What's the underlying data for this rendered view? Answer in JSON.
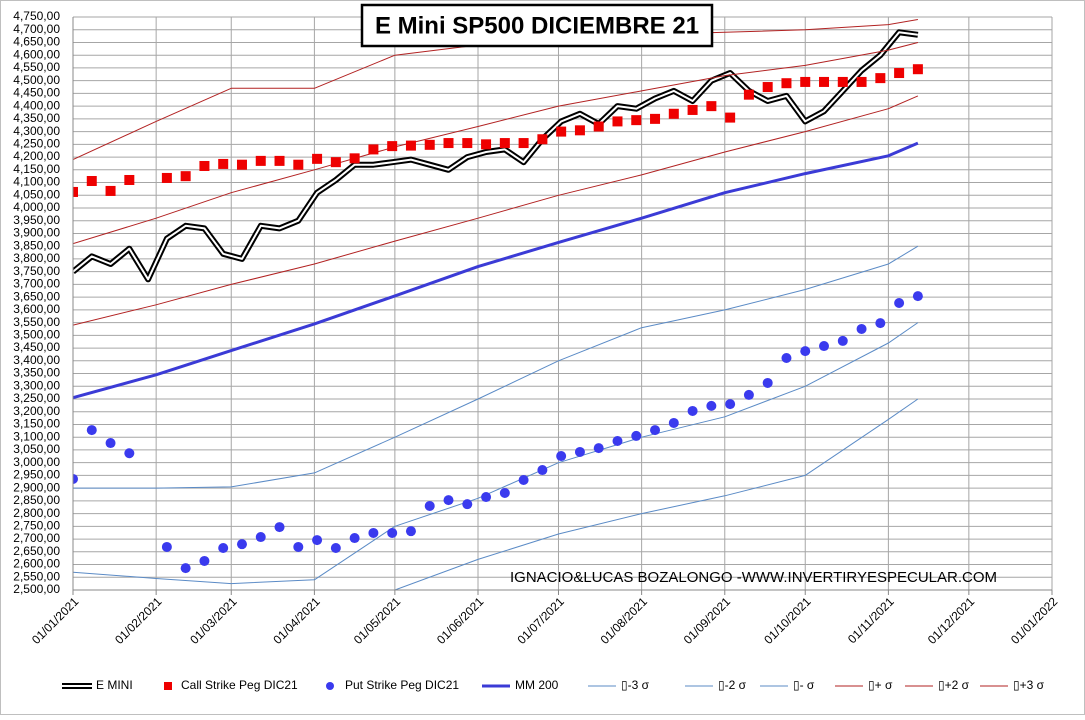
{
  "chart_data": {
    "type": "line",
    "title": "E Mini SP500 DICIEMBRE 21",
    "annotation": "IGNACIO&LUCAS BOZALONGO -WWW.INVERTIRYESPECULAR.COM",
    "grid": true,
    "legend": "bottom",
    "xlim": [
      "2021-01-01",
      "2022-01-01"
    ],
    "xticks": [
      {
        "value": "2021-01-01",
        "label": "01/01/2021"
      },
      {
        "value": "2021-02-01",
        "label": "01/02/2021"
      },
      {
        "value": "2021-03-01",
        "label": "01/03/2021"
      },
      {
        "value": "2021-04-01",
        "label": "01/04/2021"
      },
      {
        "value": "2021-05-01",
        "label": "01/05/2021"
      },
      {
        "value": "2021-06-01",
        "label": "01/06/2021"
      },
      {
        "value": "2021-07-01",
        "label": "01/07/2021"
      },
      {
        "value": "2021-08-01",
        "label": "01/08/2021"
      },
      {
        "value": "2021-09-01",
        "label": "01/09/2021"
      },
      {
        "value": "2021-10-01",
        "label": "01/10/2021"
      },
      {
        "value": "2021-11-01",
        "label": "01/11/2021"
      },
      {
        "value": "2021-12-01",
        "label": "01/12/2021"
      },
      {
        "value": "2022-01-01",
        "label": "01/01/2022"
      }
    ],
    "ylim": [
      2500,
      4750
    ],
    "yticks": [
      {
        "value": 2500,
        "label": "2,500,00"
      },
      {
        "value": 2550,
        "label": "2,550,00"
      },
      {
        "value": 2600,
        "label": "2,600,00"
      },
      {
        "value": 2650,
        "label": "2,650,00"
      },
      {
        "value": 2700,
        "label": "2,700,00"
      },
      {
        "value": 2750,
        "label": "2,750,00"
      },
      {
        "value": 2800,
        "label": "2,800,00"
      },
      {
        "value": 2850,
        "label": "2,850,00"
      },
      {
        "value": 2900,
        "label": "2,900,00"
      },
      {
        "value": 2950,
        "label": "2,950,00"
      },
      {
        "value": 3000,
        "label": "3,000,00"
      },
      {
        "value": 3050,
        "label": "3,050,00"
      },
      {
        "value": 3100,
        "label": "3,100,00"
      },
      {
        "value": 3150,
        "label": "3,150,00"
      },
      {
        "value": 3200,
        "label": "3,200,00"
      },
      {
        "value": 3250,
        "label": "3,250,00"
      },
      {
        "value": 3300,
        "label": "3,300,00"
      },
      {
        "value": 3350,
        "label": "3,350,00"
      },
      {
        "value": 3400,
        "label": "3,400,00"
      },
      {
        "value": 3450,
        "label": "3,450,00"
      },
      {
        "value": 3500,
        "label": "3,500,00"
      },
      {
        "value": 3550,
        "label": "3,550,00"
      },
      {
        "value": 3600,
        "label": "3,600,00"
      },
      {
        "value": 3650,
        "label": "3,650,00"
      },
      {
        "value": 3700,
        "label": "3,700,00"
      },
      {
        "value": 3750,
        "label": "3,750,00"
      },
      {
        "value": 3800,
        "label": "3,800,00"
      },
      {
        "value": 3850,
        "label": "3,850,00"
      },
      {
        "value": 3900,
        "label": "3,900,00"
      },
      {
        "value": 3950,
        "label": "3,950,00"
      },
      {
        "value": 4000,
        "label": "4,000,00"
      },
      {
        "value": 4050,
        "label": "4,050,00"
      },
      {
        "value": 4100,
        "label": "4,100,00"
      },
      {
        "value": 4150,
        "label": "4,150,00"
      },
      {
        "value": 4200,
        "label": "4,200,00"
      },
      {
        "value": 4250,
        "label": "4,250,00"
      },
      {
        "value": 4300,
        "label": "4,300,00"
      },
      {
        "value": 4350,
        "label": "4,350,00"
      },
      {
        "value": 4400,
        "label": "4,400,00"
      },
      {
        "value": 4450,
        "label": "4,450,00"
      },
      {
        "value": 4500,
        "label": "4,500,00"
      },
      {
        "value": 4550,
        "label": "4,550,00"
      },
      {
        "value": 4600,
        "label": "4,600,00"
      },
      {
        "value": 4650,
        "label": "4,650,00"
      },
      {
        "value": 4700,
        "label": "4,700,00"
      },
      {
        "value": 4750,
        "label": "4,750,00"
      }
    ],
    "x": [
      "2021-01-01",
      "2021-01-08",
      "2021-01-15",
      "2021-01-22",
      "2021-01-29",
      "2021-02-05",
      "2021-02-12",
      "2021-02-19",
      "2021-02-26",
      "2021-03-05",
      "2021-03-12",
      "2021-03-19",
      "2021-03-26",
      "2021-04-02",
      "2021-04-09",
      "2021-04-16",
      "2021-04-23",
      "2021-04-30",
      "2021-05-07",
      "2021-05-14",
      "2021-05-21",
      "2021-05-28",
      "2021-06-04",
      "2021-06-11",
      "2021-06-18",
      "2021-06-25",
      "2021-07-02",
      "2021-07-09",
      "2021-07-16",
      "2021-07-23",
      "2021-07-30",
      "2021-08-06",
      "2021-08-13",
      "2021-08-20",
      "2021-08-27",
      "2021-09-03",
      "2021-09-10",
      "2021-09-17",
      "2021-09-24",
      "2021-10-01",
      "2021-10-08",
      "2021-10-15",
      "2021-10-22",
      "2021-10-29",
      "2021-11-05",
      "2021-11-12"
    ],
    "series": [
      {
        "name": "E MINI",
        "style": "double",
        "color": "#000000",
        "values": [
          3750,
          3810,
          3780,
          3840,
          3720,
          3880,
          3930,
          3920,
          3820,
          3800,
          3930,
          3920,
          3950,
          4060,
          4110,
          4170,
          4170,
          4180,
          4190,
          4170,
          4150,
          4200,
          4220,
          4230,
          4180,
          4270,
          4340,
          4370,
          4330,
          4400,
          4390,
          4430,
          4460,
          4420,
          4500,
          4530,
          4460,
          4420,
          4440,
          4340,
          4380,
          4460,
          4540,
          4600,
          4690,
          4680
        ]
      },
      {
        "name": "Call Strike Peg DIC21",
        "style": "square",
        "color": "#ee0000",
        "values": [
          4063,
          4106,
          4067,
          4110,
          null,
          4118,
          4125,
          4165,
          4173,
          4170,
          4185,
          4185,
          4170,
          4193,
          4180,
          4195,
          4230,
          4243,
          4245,
          4248,
          4255,
          4255,
          4250,
          4255,
          4255,
          4270,
          4300,
          4305,
          4320,
          4340,
          4345,
          4350,
          4370,
          4385,
          4400,
          4355,
          4445,
          4475,
          4490,
          4495,
          4495,
          4495,
          4495,
          4510,
          4530,
          4545
        ]
      },
      {
        "name": "Put Strike Peg DIC21",
        "style": "circle",
        "color": "#3a3aee",
        "values": [
          2936,
          3128,
          3077,
          3037,
          null,
          2669,
          2586,
          2614,
          2665,
          2680,
          2708,
          2747,
          2669,
          2696,
          2665,
          2704,
          2724,
          2724,
          2731,
          2830,
          2853,
          2837,
          2865,
          2881,
          2932,
          2971,
          3026,
          3042,
          3057,
          3085,
          3105,
          3128,
          3156,
          3203,
          3223,
          3230,
          3266,
          3313,
          3411,
          3438,
          3458,
          3478,
          3525,
          3548,
          3627,
          3654
        ]
      },
      {
        "name": "MM 200",
        "style": "line",
        "width": 3,
        "color": "#3b3bd6",
        "x": [
          "2021-01-01",
          "2021-02-01",
          "2021-03-01",
          "2021-04-01",
          "2021-05-01",
          "2021-06-01",
          "2021-07-01",
          "2021-08-01",
          "2021-09-01",
          "2021-10-01",
          "2021-11-01",
          "2021-11-12"
        ],
        "values": [
          3255,
          3345,
          3440,
          3545,
          3655,
          3770,
          3865,
          3960,
          4060,
          4135,
          4205,
          4255
        ]
      },
      {
        "name": "▯-3 σ",
        "style": "line",
        "width": 1,
        "color": "#5b8bc6",
        "x": [
          "2021-01-01",
          "2021-02-01",
          "2021-03-01",
          "2021-04-01",
          "2021-05-01",
          "2021-06-01",
          "2021-07-01",
          "2021-08-01",
          "2021-09-01",
          "2021-10-01",
          "2021-11-01",
          "2021-11-12"
        ],
        "values": [
          null,
          null,
          null,
          null,
          2500,
          2620,
          2720,
          2800,
          2870,
          2950,
          3170,
          3250
        ]
      },
      {
        "name": "▯-2 σ",
        "style": "line",
        "width": 1,
        "color": "#5b8bc6",
        "x": [
          "2021-01-01",
          "2021-02-01",
          "2021-03-01",
          "2021-04-01",
          "2021-05-01",
          "2021-06-01",
          "2021-07-01",
          "2021-08-01",
          "2021-09-01",
          "2021-10-01",
          "2021-11-01",
          "2021-11-12"
        ],
        "values": [
          2570,
          2545,
          2525,
          2540,
          2750,
          2860,
          3000,
          3100,
          3180,
          3300,
          3470,
          3550
        ]
      },
      {
        "name": "▯- σ",
        "style": "line",
        "width": 1,
        "color": "#5b8bc6",
        "x": [
          "2021-01-01",
          "2021-02-01",
          "2021-03-01",
          "2021-04-01",
          "2021-05-01",
          "2021-06-01",
          "2021-07-01",
          "2021-08-01",
          "2021-09-01",
          "2021-10-01",
          "2021-11-01",
          "2021-11-12"
        ],
        "values": [
          2900,
          2900,
          2905,
          2960,
          3100,
          3250,
          3400,
          3530,
          3600,
          3680,
          3780,
          3850
        ]
      },
      {
        "name": "▯+ σ",
        "style": "line",
        "width": 1,
        "color": "#b22222",
        "x": [
          "2021-01-01",
          "2021-02-01",
          "2021-03-01",
          "2021-04-01",
          "2021-05-01",
          "2021-06-01",
          "2021-07-01",
          "2021-08-01",
          "2021-09-01",
          "2021-10-01",
          "2021-11-01",
          "2021-11-12"
        ],
        "values": [
          3540,
          3620,
          3700,
          3780,
          3870,
          3960,
          4050,
          4130,
          4220,
          4300,
          4390,
          4440
        ]
      },
      {
        "name": "▯+2 σ",
        "style": "line",
        "width": 1,
        "color": "#b22222",
        "x": [
          "2021-01-01",
          "2021-02-01",
          "2021-03-01",
          "2021-04-01",
          "2021-05-01",
          "2021-06-01",
          "2021-07-01",
          "2021-08-01",
          "2021-09-01",
          "2021-10-01",
          "2021-11-01",
          "2021-11-12"
        ],
        "values": [
          3860,
          3960,
          4060,
          4150,
          4240,
          4320,
          4400,
          4460,
          4520,
          4560,
          4620,
          4650
        ]
      },
      {
        "name": "▯+3 σ",
        "style": "line",
        "width": 1,
        "color": "#b22222",
        "x": [
          "2021-01-01",
          "2021-02-01",
          "2021-03-01",
          "2021-04-01",
          "2021-05-01",
          "2021-06-01",
          "2021-07-01",
          "2021-08-01",
          "2021-09-01",
          "2021-10-01",
          "2021-11-01",
          "2021-11-12"
        ],
        "values": [
          4190,
          4340,
          4470,
          4470,
          4600,
          4640,
          4660,
          4680,
          4690,
          4700,
          4720,
          4740
        ]
      }
    ]
  }
}
